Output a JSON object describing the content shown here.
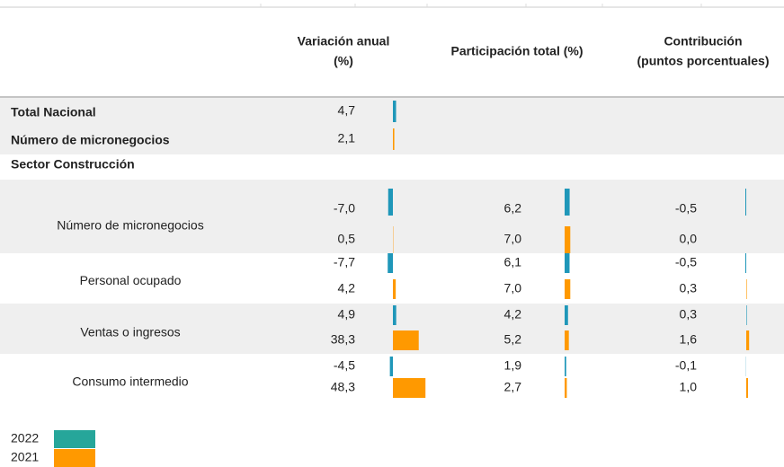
{
  "columns": [
    [
      "Variación anual",
      "(%)"
    ],
    [
      "Participación total (%)"
    ],
    [
      "Contribución",
      "(puntos porcentuales)"
    ]
  ],
  "series": [
    {
      "name": "2022",
      "color": "#26a69a",
      "bar_color": "#1f97b9"
    },
    {
      "name": "2021",
      "color": "#ff9900",
      "bar_color": "#ff9900"
    }
  ],
  "total": {
    "labels": [
      "Total Nacional",
      "Número de micronegocios"
    ],
    "values": [
      4.7,
      2.1
    ],
    "value_labels": [
      "4,7",
      "2,1"
    ]
  },
  "section": "Sector Construcción",
  "groups": [
    {
      "label": "Número de micronegocios",
      "values": [
        [
          -7.0,
          0.5
        ],
        [
          6.2,
          7.0
        ],
        [
          -0.5,
          0.0
        ]
      ],
      "value_labels": [
        [
          "-7,0",
          "0,5"
        ],
        [
          "6,2",
          "7,0"
        ],
        [
          "-0,5",
          "0,0"
        ]
      ]
    },
    {
      "label": "Personal ocupado",
      "values": [
        [
          -7.7,
          4.2
        ],
        [
          6.1,
          7.0
        ],
        [
          -0.5,
          0.3
        ]
      ],
      "value_labels": [
        [
          "-7,7",
          "4,2"
        ],
        [
          "6,1",
          "7,0"
        ],
        [
          "-0,5",
          "0,3"
        ]
      ]
    },
    {
      "label": "Ventas o ingresos",
      "values": [
        [
          4.9,
          38.3
        ],
        [
          4.2,
          5.2
        ],
        [
          0.3,
          1.6
        ]
      ],
      "value_labels": [
        [
          "4,9",
          "38,3"
        ],
        [
          "4,2",
          "5,2"
        ],
        [
          "0,3",
          "1,6"
        ]
      ]
    },
    {
      "label": "Consumo intermedio",
      "values": [
        [
          -4.5,
          48.3
        ],
        [
          1.9,
          2.7
        ],
        [
          -0.1,
          1.0
        ]
      ],
      "value_labels": [
        [
          "-4,5",
          "48,3"
        ],
        [
          "1,9",
          "2,7"
        ],
        [
          "-0,1",
          "1,0"
        ]
      ]
    }
  ]
}
